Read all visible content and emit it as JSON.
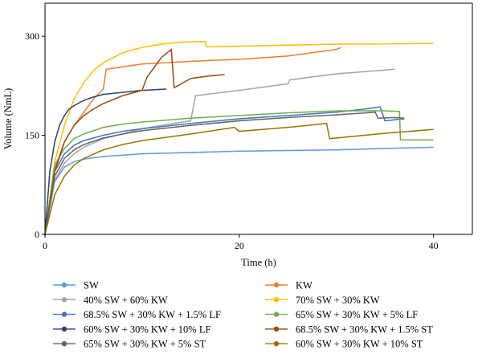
{
  "chart_data": {
    "type": "line",
    "xlabel": "Time (h)",
    "ylabel": "Volume (NmL)",
    "xlim": [
      0,
      44
    ],
    "ylim": [
      0,
      350
    ],
    "xticks": [
      0,
      20,
      40
    ],
    "yticks": [
      0,
      150,
      300
    ],
    "grid": false,
    "legend_position": "bottom",
    "legend_columns": 2,
    "series": [
      {
        "name": "SW",
        "color": "#5b9bd5",
        "x": [
          0,
          1,
          2,
          3,
          4,
          6,
          8,
          10,
          15,
          20,
          25,
          30,
          35,
          40
        ],
        "y": [
          0,
          80,
          102,
          110,
          114,
          118,
          120,
          122,
          124,
          126,
          127,
          128,
          130,
          132
        ]
      },
      {
        "name": "KW",
        "color": "#ed7d31",
        "x": [
          0,
          1,
          2,
          3,
          4,
          5,
          6,
          6.3,
          10,
          15,
          20,
          25,
          30,
          30.5
        ],
        "y": [
          0,
          98,
          140,
          165,
          185,
          205,
          220,
          250,
          258,
          262,
          265,
          270,
          280,
          283
        ]
      },
      {
        "name": "40% SW + 60% KW",
        "color": "#a5a5a5",
        "x": [
          0,
          1,
          2,
          3,
          4,
          6,
          8,
          10,
          12,
          15,
          15.5,
          20,
          25,
          25.2,
          30,
          36
        ],
        "y": [
          0,
          82,
          108,
          122,
          132,
          145,
          152,
          160,
          165,
          172,
          210,
          218,
          228,
          234,
          243,
          250
        ]
      },
      {
        "name": "70% SW + 30% KW",
        "color": "#ffc000",
        "x": [
          0,
          1,
          2,
          3,
          4,
          5,
          6,
          8,
          10,
          12,
          14,
          16.5,
          16.6,
          20,
          30,
          40
        ],
        "y": [
          0,
          110,
          165,
          205,
          230,
          248,
          260,
          275,
          283,
          288,
          291,
          292,
          284,
          285,
          288,
          289
        ]
      },
      {
        "name": "68.5% SW + 30% KW + 1.5% LF",
        "color": "#4472c4",
        "x": [
          0,
          1,
          2,
          3,
          4,
          6,
          8,
          10,
          15,
          20,
          25,
          30,
          33,
          34.5,
          35,
          37
        ],
        "y": [
          0,
          95,
          122,
          135,
          142,
          150,
          156,
          160,
          168,
          175,
          180,
          185,
          190,
          193,
          172,
          175
        ]
      },
      {
        "name": "65% SW + 30% KW + 5% LF",
        "color": "#70ad47",
        "x": [
          0,
          1,
          2,
          3,
          4,
          6,
          8,
          10,
          15,
          20,
          25,
          30,
          35,
          36.5,
          36.6,
          40
        ],
        "y": [
          0,
          105,
          130,
          145,
          152,
          162,
          167,
          170,
          176,
          180,
          184,
          187,
          187,
          186,
          143,
          143
        ]
      },
      {
        "name": "60% SW + 30% KW + 10% LF",
        "color": "#264478",
        "x": [
          0,
          0.5,
          1,
          1.5,
          2,
          2.5,
          3,
          4,
          5,
          6,
          8,
          10,
          12.5
        ],
        "y": [
          0,
          95,
          140,
          165,
          180,
          190,
          195,
          203,
          208,
          212,
          215,
          218,
          220
        ]
      },
      {
        "name": "68.5% SW + 30% KW + 1.5% ST",
        "color": "#9e480e",
        "x": [
          0,
          1,
          2,
          3,
          4,
          5,
          6,
          8,
          10,
          10.5,
          12,
          13,
          13.3,
          15,
          17,
          18.5
        ],
        "y": [
          0,
          95,
          140,
          165,
          180,
          190,
          198,
          210,
          218,
          238,
          268,
          280,
          222,
          236,
          240,
          242
        ]
      },
      {
        "name": "65% SW + 30% KW + 5% ST",
        "color": "#636363",
        "x": [
          0,
          1,
          2,
          3,
          4,
          6,
          8,
          10,
          15,
          20,
          25,
          30,
          34,
          34.3,
          36,
          37
        ],
        "y": [
          0,
          88,
          115,
          128,
          136,
          146,
          152,
          157,
          165,
          172,
          177,
          181,
          185,
          176,
          177,
          176
        ]
      },
      {
        "name": "60% SW + 30% KW + 10% ST",
        "color": "#997300",
        "x": [
          0,
          1,
          2,
          3,
          4,
          6,
          8,
          10,
          15,
          19.5,
          20,
          25,
          29,
          29.3,
          35,
          40
        ],
        "y": [
          0,
          60,
          88,
          105,
          115,
          128,
          136,
          142,
          152,
          162,
          156,
          162,
          168,
          145,
          153,
          159
        ]
      }
    ]
  }
}
